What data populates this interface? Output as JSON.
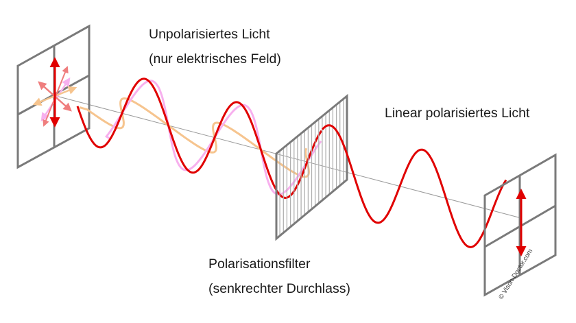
{
  "labels": {
    "unpolarized_line1": "Unpolarisiertes Licht",
    "unpolarized_line2": "(nur elektrisches Feld)",
    "linear": "Linear polarisiertes Licht",
    "filter_line1": "Polarisationsfilter",
    "filter_line2": "(senkrechter Durchlass)",
    "copyright": "© Vison-Doctor.com"
  },
  "colors": {
    "frame": "#7a7a7a",
    "axis": "#9a9a9a",
    "wave_red": "#e00000",
    "wave_pink": "#f7b0ee",
    "wave_orange": "#f6c48e",
    "arrow_faded": "#ef7e7e",
    "grid_lines": "#b0b0b0"
  },
  "icons": {
    "source_frame": "window-frame",
    "filter": "vertical-grating",
    "target_frame": "window-frame",
    "arrows": "double-headed-arrow"
  }
}
